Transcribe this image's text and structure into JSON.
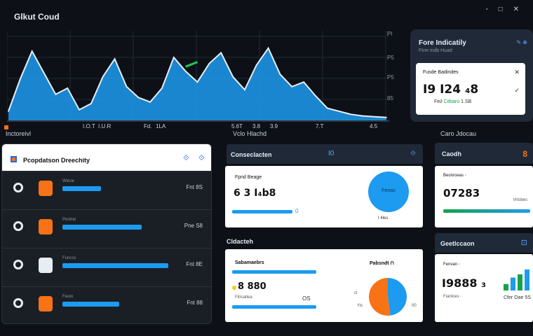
{
  "app": {
    "title": "Glkut Coud"
  },
  "top_icons": [
    "◦",
    "□",
    "✕"
  ],
  "chart_data": {
    "type": "area",
    "title": "",
    "x": [
      0,
      1,
      2,
      3,
      4,
      5,
      6,
      7,
      8,
      9,
      10,
      11,
      12,
      13,
      14,
      15,
      16,
      17,
      18,
      19,
      20,
      21,
      22,
      23,
      24,
      25,
      26,
      27,
      28,
      29,
      30,
      31,
      32
    ],
    "values": [
      10,
      52,
      88,
      60,
      32,
      40,
      12,
      20,
      55,
      78,
      42,
      28,
      22,
      40,
      80,
      62,
      48,
      72,
      86,
      55,
      38,
      70,
      92,
      58,
      42,
      48,
      30,
      14,
      10,
      6,
      4,
      3,
      2
    ],
    "highlight": {
      "series": "green",
      "x": [
        15,
        16
      ],
      "values": [
        68,
        74
      ]
    },
    "y_ticks": [
      "PI",
      "P5",
      "P5",
      "85"
    ],
    "x_ticks": [
      "I.O.T",
      "I.U.R",
      "Fd.",
      "1LA",
      "5.6T",
      "3.8",
      "3.9",
      "7.T",
      "4.5"
    ]
  },
  "section_left_label": "Inctoreivl",
  "section_mid_label": "Vclo Hlachd",
  "top_right": {
    "title": "Fore Indicatily",
    "subtitle": "Ftne indb Huad",
    "link": "✎ ⊕",
    "card_label": "Fusde Badindes",
    "card_value": "I9 I24 ₄8",
    "foot_left": "Fe∂",
    "foot_green": "Citbaro",
    "foot_right": "1.SB",
    "close": "✕",
    "check": "✓"
  },
  "left_panel": {
    "title": "Pcopdatson Dreechity",
    "head_icons": [
      "⟐",
      "⟐"
    ],
    "rows": [
      {
        "icon_color": "#f97316",
        "small": "Wleoe",
        "bar_pct": 0.19,
        "value": "Fnt 8S"
      },
      {
        "icon_color": "#f97316",
        "small": "Pootrai",
        "bar_pct": 0.39,
        "value": "Pne S8"
      },
      {
        "icon_color": "#e6edf3",
        "small": "Funcss",
        "bar_pct": 0.52,
        "value": "Fnt 8E"
      },
      {
        "icon_color": "#f97316",
        "small": "Feuto",
        "bar_pct": 0.28,
        "value": "Fnt 88"
      }
    ]
  },
  "mid_top": {
    "title": "Conseclacten",
    "num": "I0",
    "icon": "⟐",
    "label": "Fpnd Beage",
    "value": "6 3 I₄b8",
    "bar_value": "0",
    "circle_label": "Feoao",
    "foot": "I 4les"
  },
  "mid_bottom": {
    "section": "Cldacteh",
    "label": "Sabamaebrs",
    "value": "8 880",
    "small": "Fitrcatlea",
    "right_value": "OS",
    "pie_label": "Pabsndt ⊓",
    "pie_left": "cl",
    "pie_left2": "Yis",
    "pie_right": "00",
    "pie_colors": [
      "#1d9bf0",
      "#f97316"
    ],
    "pie_values": [
      48,
      52
    ]
  },
  "right_col": {
    "head": "Caro Jdocau",
    "box1_title": "Caodh",
    "box1_icon": "8",
    "card1_label": "Beonroeas ◦",
    "card1_value": "07283",
    "card1_side": "Vrtobes",
    "box2_title": "Geetlccaon",
    "box2_icon": "⊡",
    "card2_label": "Fenvan ◦",
    "card2_value": "I9888 ₃",
    "card2_small": "Fianlces ◦",
    "card2_foot": "Cfer  Oae 5S",
    "bars": [
      {
        "value": 8,
        "color": "#16a34a"
      },
      {
        "value": 16,
        "color": "#1d9bf0"
      },
      {
        "value": 20,
        "color": "#16a34a"
      },
      {
        "value": 26,
        "color": "#1d9bf0"
      }
    ]
  }
}
